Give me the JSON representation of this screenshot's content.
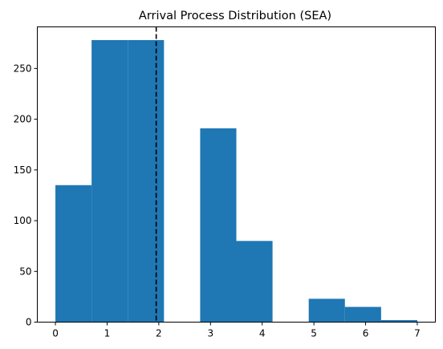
{
  "chart_data": {
    "type": "bar",
    "title": "Arrival Process Distribution (SEA)",
    "xlabel": "",
    "ylabel": "",
    "xlim": [
      -0.35,
      7.35
    ],
    "ylim": [
      0,
      291
    ],
    "xticks": [
      0,
      1,
      2,
      3,
      4,
      5,
      6,
      7
    ],
    "yticks": [
      0,
      50,
      100,
      150,
      200,
      250
    ],
    "bins": [
      {
        "x0": 0.0,
        "x1": 0.7,
        "count": 135
      },
      {
        "x0": 0.7,
        "x1": 1.4,
        "count": 278
      },
      {
        "x0": 1.4,
        "x1": 2.1,
        "count": 278
      },
      {
        "x0": 2.1,
        "x1": 2.8,
        "count": 0
      },
      {
        "x0": 2.8,
        "x1": 3.5,
        "count": 191
      },
      {
        "x0": 3.5,
        "x1": 4.2,
        "count": 80
      },
      {
        "x0": 4.2,
        "x1": 4.9,
        "count": 0
      },
      {
        "x0": 4.9,
        "x1": 5.6,
        "count": 23
      },
      {
        "x0": 5.6,
        "x1": 6.3,
        "count": 15
      },
      {
        "x0": 6.3,
        "x1": 7.0,
        "count": 2
      }
    ],
    "mean_line": {
      "x": 1.95,
      "style": "dashed",
      "color": "#000000"
    },
    "bar_color": "#1f77b4",
    "grid": false,
    "legend": "none"
  }
}
